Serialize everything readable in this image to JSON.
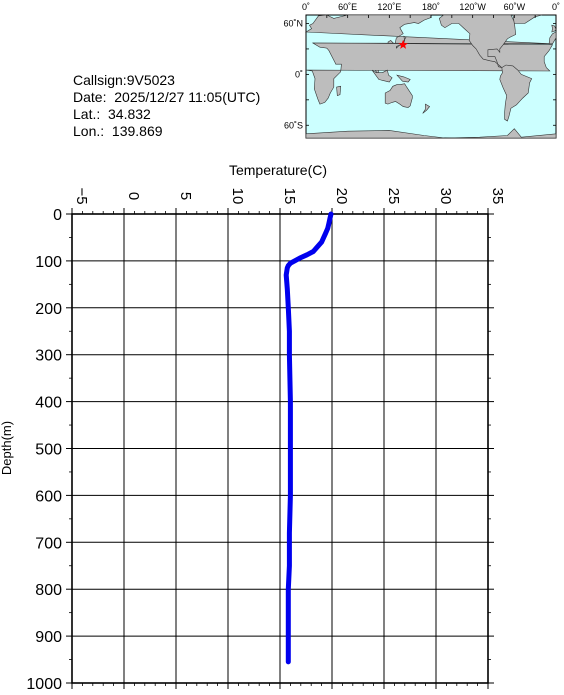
{
  "info": {
    "callsign": "Callsign:9V5023",
    "date": "Date:  2025/12/27 11:05(UTC)",
    "lat": "Lat.:  34.832",
    "lon": "Lon.:  139.869"
  },
  "map": {
    "lon_labels": [
      "0˚",
      "60˚E",
      "120˚E",
      "180˚",
      "120˚W",
      "60˚W",
      "0˚"
    ],
    "lat_labels": [
      "60˚N",
      "0˚",
      "60˚S"
    ],
    "marker": {
      "lat": 34.832,
      "lon": 139.869,
      "symbol": "star",
      "color": "#ff0000"
    },
    "ocean_color": "#ccffff",
    "land_color": "#bdbdbd"
  },
  "chart_data": {
    "type": "line",
    "xlabel": "Temperature(C)",
    "ylabel": "Depth(m)",
    "xlim": [
      -5,
      35
    ],
    "ylim": [
      0,
      1000
    ],
    "y_inverted": true,
    "x_axis_position": "top",
    "x_ticks": [
      -5,
      0,
      5,
      10,
      15,
      20,
      25,
      30,
      35
    ],
    "y_ticks": [
      0,
      100,
      200,
      300,
      400,
      500,
      600,
      700,
      800,
      900,
      1000
    ],
    "grid": true,
    "line_color": "#0000ee",
    "series": [
      {
        "x": [
          19.9,
          19.8,
          19.7,
          19.6,
          19.4,
          19.2,
          19.0,
          18.6,
          18.2,
          17.6,
          17.0,
          16.4,
          16.0,
          15.8,
          15.7,
          15.6,
          15.7,
          15.8,
          15.9,
          15.9,
          16.0,
          16.0,
          16.0,
          15.9,
          15.9,
          15.9,
          15.8,
          15.8,
          15.8
        ],
        "y": [
          0,
          10,
          20,
          30,
          40,
          50,
          60,
          70,
          80,
          87,
          93,
          100,
          105,
          110,
          115,
          130,
          160,
          200,
          250,
          300,
          400,
          500,
          600,
          680,
          700,
          750,
          800,
          900,
          955
        ]
      }
    ]
  }
}
